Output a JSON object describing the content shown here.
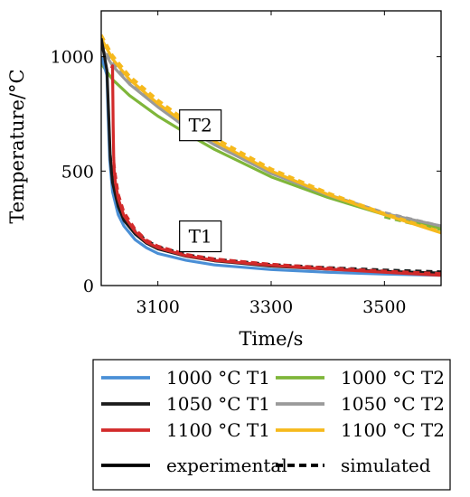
{
  "chart_data": {
    "type": "line",
    "xlabel": "Time/s",
    "ylabel": "Temperature/°C",
    "xlim": [
      3000,
      3600
    ],
    "ylim": [
      0,
      1200
    ],
    "xticks": [
      3100,
      3300,
      3500
    ],
    "yticks": [
      0,
      500,
      1000
    ],
    "annotations": [
      {
        "text": "T2",
        "x": 3175,
        "y": 700
      },
      {
        "text": "T1",
        "x": 3175,
        "y": 215
      }
    ],
    "legend": {
      "placement": "below",
      "entries": [
        {
          "label": "1000 °C T1",
          "color": "#4a8fd6",
          "dash": "solid"
        },
        {
          "label": "1000 °C T2",
          "color": "#7fb63a",
          "dash": "solid"
        },
        {
          "label": "1050 °C T1",
          "color": "#1a1a1a",
          "dash": "solid"
        },
        {
          "label": "1050 °C T2",
          "color": "#9a9a9a",
          "dash": "solid"
        },
        {
          "label": "1100 °C T1",
          "color": "#d22a2a",
          "dash": "solid"
        },
        {
          "label": "1100 °C T2",
          "color": "#f6b91c",
          "dash": "solid"
        },
        {
          "label": "experimental",
          "color": "#000000",
          "dash": "solid"
        },
        {
          "label": "simulated",
          "color": "#000000",
          "dash": "dashed"
        }
      ]
    },
    "series": [
      {
        "name": "1000 °C T2",
        "color": "#7fb63a",
        "dash": "solid",
        "x": [
          3000,
          3020,
          3050,
          3100,
          3150,
          3200,
          3300,
          3400,
          3500,
          3600
        ],
        "y": [
          970,
          900,
          830,
          740,
          665,
          595,
          475,
          385,
          310,
          250
        ]
      },
      {
        "name": "1000 °C T2",
        "color": "#7fb63a",
        "dash": "dashed",
        "x": [
          3500,
          3550,
          3600
        ],
        "y": [
          300,
          270,
          245
        ]
      },
      {
        "name": "1050 °C T2",
        "color": "#9a9a9a",
        "dash": "solid",
        "x": [
          3000,
          3020,
          3050,
          3100,
          3150,
          3200,
          3300,
          3400,
          3500,
          3600
        ],
        "y": [
          1040,
          960,
          880,
          780,
          690,
          615,
          490,
          395,
          315,
          260
        ]
      },
      {
        "name": "1050 °C T2",
        "color": "#9a9a9a",
        "dash": "dashed",
        "x": [
          3000,
          3020,
          3050,
          3100,
          3150,
          3200,
          3300,
          3400,
          3500,
          3600
        ],
        "y": [
          1055,
          975,
          895,
          795,
          705,
          628,
          500,
          398,
          318,
          260
        ]
      },
      {
        "name": "1100 °C T2",
        "color": "#f6b91c",
        "dash": "solid",
        "x": [
          3000,
          3020,
          3050,
          3100,
          3150,
          3200,
          3300,
          3400,
          3500,
          3600
        ],
        "y": [
          1080,
          990,
          900,
          795,
          705,
          630,
          500,
          398,
          310,
          230
        ]
      },
      {
        "name": "1100 °C T2",
        "color": "#f6b91c",
        "dash": "dashed",
        "x": [
          3000,
          3020,
          3050,
          3100,
          3150,
          3200,
          3300,
          3400,
          3500,
          3600
        ],
        "y": [
          1095,
          1005,
          915,
          810,
          720,
          645,
          510,
          405,
          315,
          235
        ]
      },
      {
        "name": "1000 °C T1",
        "color": "#4a8fd6",
        "dash": "solid",
        "x": [
          3000,
          3010,
          3012,
          3015,
          3020,
          3030,
          3040,
          3060,
          3080,
          3100,
          3150,
          3200,
          3300,
          3400,
          3500,
          3600
        ],
        "y": [
          1000,
          920,
          760,
          550,
          410,
          310,
          260,
          200,
          165,
          140,
          110,
          90,
          70,
          58,
          50,
          45
        ]
      },
      {
        "name": "1050 °C T1",
        "color": "#1a1a1a",
        "dash": "solid",
        "x": [
          3000,
          3010,
          3013,
          3016,
          3020,
          3030,
          3040,
          3060,
          3080,
          3100,
          3150,
          3200,
          3300,
          3400,
          3500,
          3600
        ],
        "y": [
          1080,
          940,
          760,
          560,
          450,
          345,
          285,
          225,
          185,
          160,
          128,
          108,
          85,
          72,
          62,
          55
        ]
      },
      {
        "name": "1050 °C T1",
        "color": "#1a1a1a",
        "dash": "dashed",
        "x": [
          3016,
          3020,
          3030,
          3040,
          3060,
          3080,
          3100,
          3150,
          3200,
          3300,
          3400,
          3500,
          3600
        ],
        "y": [
          570,
          460,
          360,
          300,
          238,
          196,
          170,
          135,
          115,
          92,
          78,
          68,
          60
        ]
      },
      {
        "name": "1100 °C T1",
        "color": "#d22a2a",
        "dash": "solid",
        "x": [
          3018,
          3020,
          3021,
          3022,
          3023,
          3025,
          3030,
          3040,
          3060,
          3080,
          3100,
          3150,
          3200,
          3300,
          3400,
          3500,
          3600
        ],
        "y": [
          950,
          960,
          700,
          560,
          500,
          450,
          380,
          305,
          235,
          190,
          165,
          130,
          110,
          88,
          72,
          58,
          45
        ]
      },
      {
        "name": "1100 °C T1",
        "color": "#d22a2a",
        "dash": "dashed",
        "x": [
          3022,
          3025,
          3030,
          3040,
          3060,
          3080,
          3100,
          3150,
          3200,
          3300,
          3400,
          3500,
          3600
        ],
        "y": [
          540,
          480,
          400,
          320,
          245,
          198,
          172,
          136,
          116,
          93,
          77,
          63,
          52
        ]
      }
    ]
  }
}
